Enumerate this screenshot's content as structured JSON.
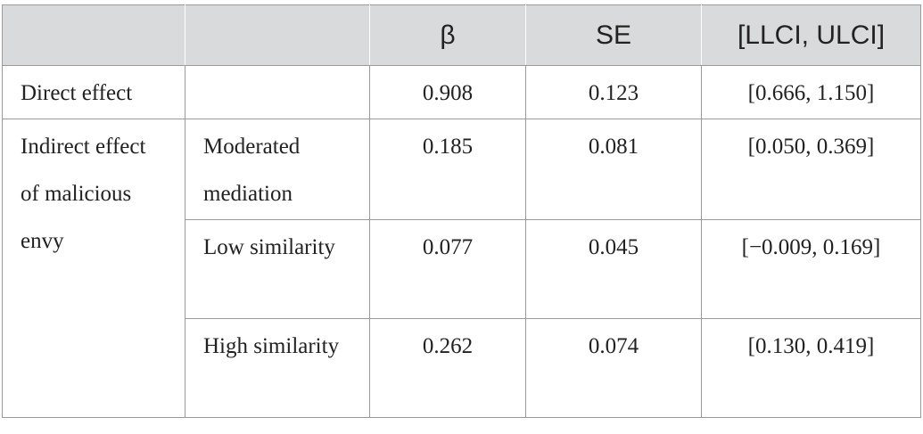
{
  "table": {
    "headers": [
      "",
      "",
      "β",
      "SE",
      "[LLCI, ULCI]"
    ],
    "direct": {
      "label": "Direct effect",
      "beta": "0.908",
      "se": "0.123",
      "ci": "[0.666, 1.150]"
    },
    "indirect_label": "Indirect effect of malicious envy",
    "indirect": [
      {
        "sublabel": "Moderated mediation",
        "beta": "0.185",
        "se": "0.081",
        "ci": "[0.050, 0.369]"
      },
      {
        "sublabel": "Low similarity",
        "beta": "0.077",
        "se": "0.045",
        "ci": "[−0.009, 0.169]"
      },
      {
        "sublabel": "High similarity",
        "beta": "0.262",
        "se": "0.074",
        "ci": "[0.130, 0.419]"
      }
    ]
  }
}
